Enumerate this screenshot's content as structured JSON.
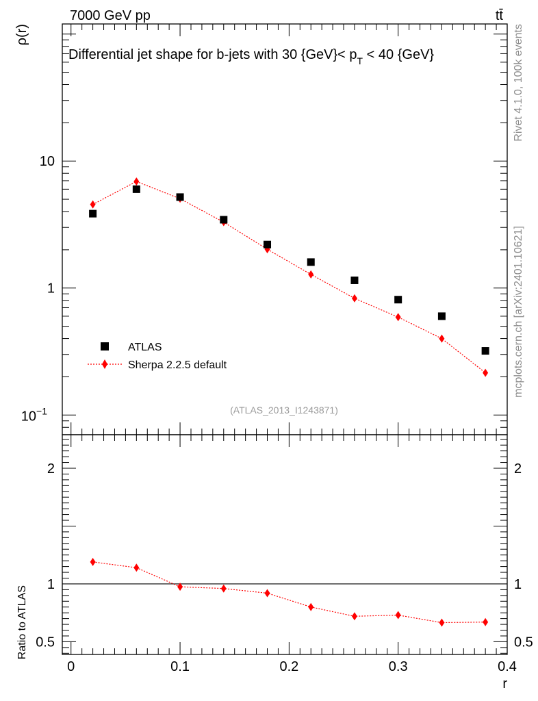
{
  "header": {
    "energy_label": "7000 GeV pp",
    "process_label": "tt̄"
  },
  "side_labels": {
    "rivet": "Rivet 4.1.0,  100k events",
    "mcplots": "mcplots.cern.ch [arXiv:2401.10621]"
  },
  "colors": {
    "atlas": "#000000",
    "sherpa": "#ff0000",
    "sidetext": "#8c8c8c"
  },
  "chart_data": [
    {
      "type": "scatter",
      "panel": "main",
      "title": "Differential jet shape for b-jets with 30 {GeV}< p_T < 40 {GeV}",
      "title_parts": {
        "pre": "Differential jet shape for b-jets with 30 {GeV}< p",
        "sub": "T",
        "post": " < 40 {GeV}"
      },
      "ylabel": "ρ(r)",
      "yscale": "log",
      "ylim": [
        0.07,
        120
      ],
      "xlim": [
        -0.008,
        0.4
      ],
      "yticks": [
        {
          "value": 0.1,
          "label": "10",
          "exp": "−1"
        },
        {
          "value": 1,
          "label": "1"
        },
        {
          "value": 10,
          "label": "10"
        }
      ],
      "annotation": "(ATLAS_2013_I1243871)",
      "legend_position": "lower-left",
      "series": [
        {
          "name": "ATLAS",
          "marker": "square",
          "x": [
            0.02,
            0.06,
            0.1,
            0.14,
            0.18,
            0.22,
            0.26,
            0.3,
            0.34,
            0.38
          ],
          "values": [
            3.85,
            6.0,
            5.2,
            3.45,
            2.2,
            1.6,
            1.15,
            0.81,
            0.6,
            0.32
          ]
        },
        {
          "name": "Sherpa 2.2.5 default",
          "marker": "diamond",
          "line": "dotted",
          "x": [
            0.02,
            0.06,
            0.1,
            0.14,
            0.18,
            0.22,
            0.26,
            0.3,
            0.34,
            0.38
          ],
          "values": [
            4.55,
            6.9,
            5.05,
            3.3,
            2.02,
            1.28,
            0.83,
            0.59,
            0.4,
            0.215
          ]
        }
      ]
    },
    {
      "type": "line",
      "panel": "ratio",
      "ylabel": "Ratio to ATLAS",
      "xlabel": "r",
      "ylim": [
        0.39,
        2.29
      ],
      "xlim": [
        -0.008,
        0.4
      ],
      "yticks": [
        {
          "value": 0.5,
          "label": "0.5"
        },
        {
          "value": 1,
          "label": "1"
        },
        {
          "value": 2,
          "label": "2"
        }
      ],
      "xticks": [
        {
          "value": 0,
          "label": "0"
        },
        {
          "value": 0.1,
          "label": "0.1"
        },
        {
          "value": 0.2,
          "label": "0.2"
        },
        {
          "value": 0.3,
          "label": "0.3"
        },
        {
          "value": 0.4,
          "label": "0.4"
        }
      ],
      "reference_line": 1,
      "series": [
        {
          "name": "Sherpa 2.2.5 default / ATLAS",
          "marker": "diamond",
          "line": "dotted",
          "x": [
            0.02,
            0.06,
            0.1,
            0.14,
            0.18,
            0.22,
            0.26,
            0.3,
            0.34,
            0.38
          ],
          "values": [
            1.19,
            1.14,
            0.975,
            0.96,
            0.92,
            0.8,
            0.72,
            0.73,
            0.665,
            0.67
          ]
        }
      ]
    }
  ]
}
